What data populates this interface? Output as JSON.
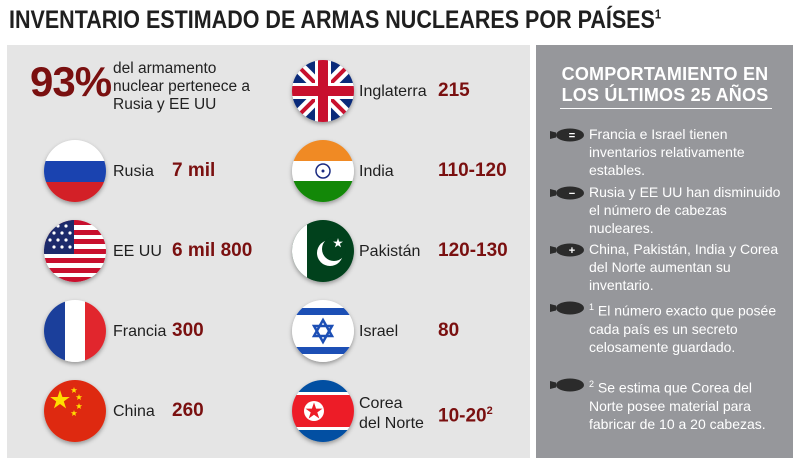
{
  "title": "INVENTARIO ESTIMADO DE ARMAS NUCLEARES POR PAÍSES",
  "title_sup": "1",
  "summary": {
    "percent": "93%",
    "text": "del armamento nuclear pertenece a Rusia y EE UU"
  },
  "countries": {
    "russia": {
      "name": "Rusia",
      "value": "7 mil"
    },
    "usa": {
      "name": "EE UU",
      "value": "6 mil 800"
    },
    "france": {
      "name": "Francia",
      "value": "300"
    },
    "china": {
      "name": "China",
      "value": "260"
    },
    "uk": {
      "name": "Inglaterra",
      "value": "215"
    },
    "india": {
      "name": "India",
      "value": "110-120"
    },
    "pakistan": {
      "name": "Pakistán",
      "value": "120-130"
    },
    "israel": {
      "name": "Israel",
      "value": "80"
    },
    "north_korea": {
      "name_line1": "Corea",
      "name_line2": "del Norte",
      "value": "10-20",
      "value_sup": "2"
    }
  },
  "right_panel": {
    "title_line1": "COMPORTAMIENTO EN",
    "title_line2": "LOS ÚLTIMOS 25 AÑOS",
    "notes": [
      {
        "symbol": "=",
        "text": "Francia e Israel tienen inventarios relativamente estables."
      },
      {
        "symbol": "−",
        "text": "Rusia y EE UU han disminuido el número de cabezas nucleares."
      },
      {
        "symbol": "+",
        "text": "China, Pakistán, India y Corea del Norte aumentan su inventario."
      },
      {
        "sup": "1",
        "text": "El número exacto que posée cada país es un secreto celosamente guardado."
      },
      {
        "sup": "2",
        "text": "Se estima que Corea del Norte posee material para fabricar de 10 a 20 cabezas."
      }
    ]
  },
  "colors": {
    "accent": "#7a1010",
    "left_panel": "#e5e5e5",
    "right_panel": "#96979b"
  }
}
